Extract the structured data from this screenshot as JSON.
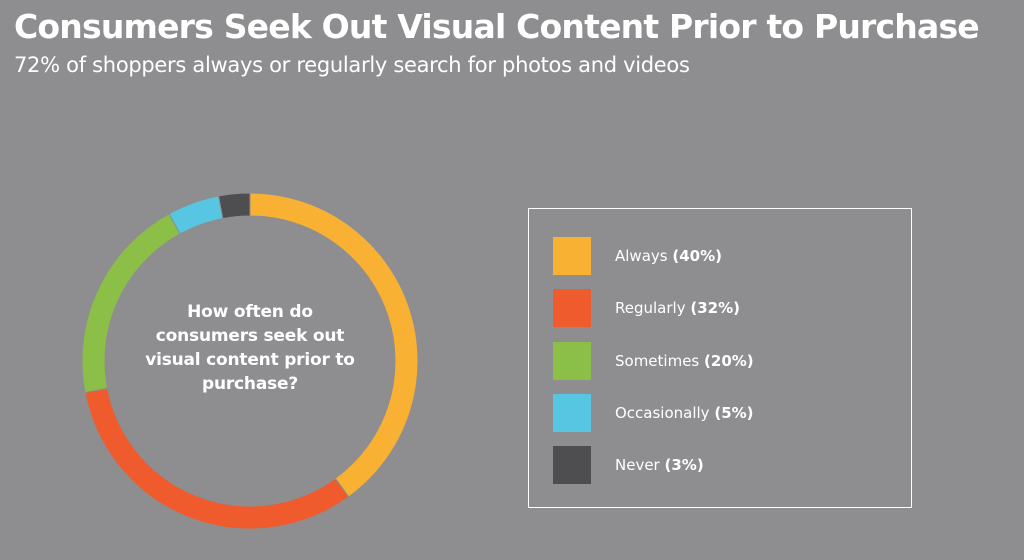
{
  "chart_data": {
    "type": "pie",
    "title": "Consumers Seek Out Visual Content Prior to Purchase",
    "subtitle": "72% of shoppers always or regularly search for photos and videos",
    "center_question": "How often do consumers seek out visual content prior to purchase?",
    "categories": [
      "Always",
      "Regularly",
      "Sometimes",
      "Occasionally",
      "Never"
    ],
    "values": [
      40,
      32,
      20,
      5,
      3
    ],
    "value_labels": [
      "(40%)",
      "(32%)",
      "(20%)",
      "(5%)",
      "(3%)"
    ],
    "colors": [
      "#f8b133",
      "#ef5b2c",
      "#8cbf47",
      "#56c6e3",
      "#4e4e50"
    ],
    "legend_placement": "right"
  }
}
